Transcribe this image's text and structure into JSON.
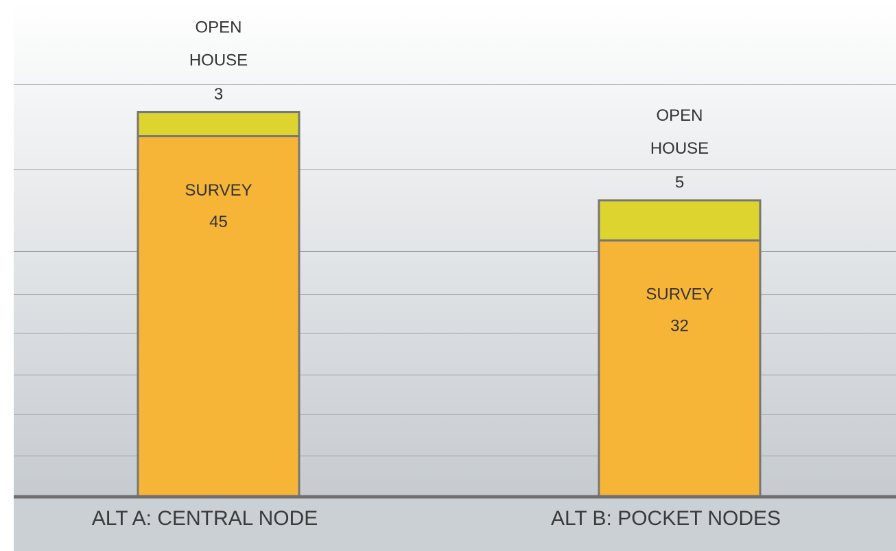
{
  "chart_data": {
    "type": "bar",
    "stacked": true,
    "categories": [
      "ALT A: CENTRAL NODE",
      "ALT B: POCKET NODES"
    ],
    "series": [
      {
        "name": "SURVEY",
        "color": "#f7b538",
        "values": [
          45,
          32
        ]
      },
      {
        "name": "OPEN HOUSE",
        "color": "#ddd430",
        "values": [
          3,
          5
        ]
      }
    ],
    "ylim": [
      0,
      62
    ]
  }
}
